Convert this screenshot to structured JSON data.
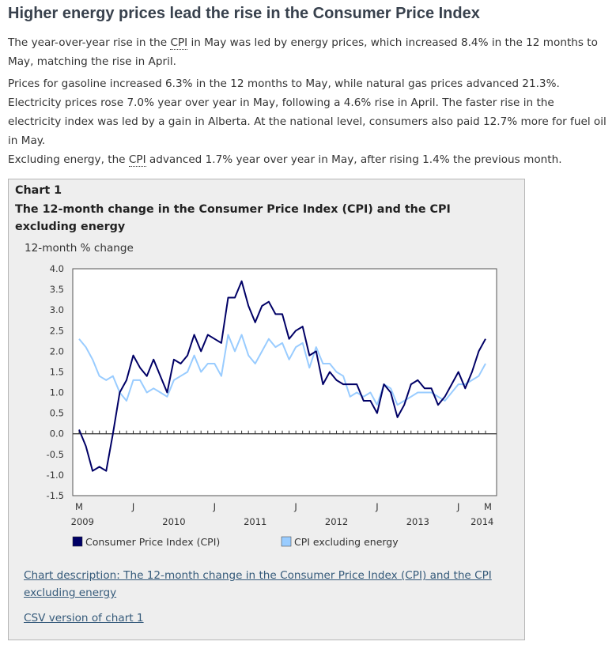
{
  "article": {
    "title": "Higher energy prices lead the rise in the Consumer Price Index",
    "p1_a": "The year-over-year rise in the ",
    "p1_abbr": "CPI",
    "p1_b": " in May was led by energy prices, which increased 8.4% in the 12 months to May, matching the rise in April.",
    "p2": "Prices for gasoline increased 6.3% in the 12 months to May, while natural gas prices advanced 21.3%. Electricity prices rose 7.0% year over year in May, following a 4.6% rise in April. The faster rise in the electricity index was led by a gain in Alberta. At the national level, consumers also paid 12.7% more for fuel oil in May.",
    "p3_a": "Excluding energy, the ",
    "p3_abbr": "CPI",
    "p3_b": " advanced 1.7% year over year in May, after rising 1.4% the previous month."
  },
  "chart": {
    "number": "Chart 1",
    "title": "The 12-month change in the Consumer Price Index (CPI) and the CPI excluding energy",
    "description_link": "Chart description: The 12-month change in the Consumer Price Index (CPI) and the CPI excluding energy",
    "csv_link": "CSV version of chart 1"
  },
  "chart_data": {
    "type": "line",
    "ylabel": "12-month % change",
    "ylim": [
      -1.5,
      4.0
    ],
    "yticks": [
      "4.0",
      "3.5",
      "3.0",
      "2.5",
      "2.0",
      "1.5",
      "1.0",
      "0.5",
      "0.0",
      "-0.5",
      "-1.0",
      "-1.5"
    ],
    "month_labels": [
      "M",
      "J",
      "J",
      "J",
      "J",
      "J",
      "M"
    ],
    "year_labels": [
      "2009",
      "2010",
      "2011",
      "2012",
      "2013",
      "2014"
    ],
    "x_start": "May 2009",
    "x_end": "May 2014",
    "series": [
      {
        "name": "Consumer Price Index (CPI)",
        "color": "#000066",
        "values": [
          0.1,
          -0.3,
          -0.9,
          -0.8,
          -0.9,
          0.0,
          1.0,
          1.3,
          1.9,
          1.6,
          1.4,
          1.8,
          1.4,
          1.0,
          1.8,
          1.7,
          1.9,
          2.4,
          2.0,
          2.4,
          2.3,
          2.2,
          3.3,
          3.3,
          3.7,
          3.1,
          2.7,
          3.1,
          3.2,
          2.9,
          2.9,
          2.3,
          2.5,
          2.6,
          1.9,
          2.0,
          1.2,
          1.5,
          1.3,
          1.2,
          1.2,
          1.2,
          0.8,
          0.8,
          0.5,
          1.2,
          1.0,
          0.4,
          0.7,
          1.2,
          1.3,
          1.1,
          1.1,
          0.7,
          0.9,
          1.2,
          1.5,
          1.1,
          1.5,
          2.0,
          2.3
        ]
      },
      {
        "name": "CPI excluding energy",
        "color": "#99ccff",
        "values": [
          2.3,
          2.1,
          1.8,
          1.4,
          1.3,
          1.4,
          1.0,
          0.8,
          1.3,
          1.3,
          1.0,
          1.1,
          1.0,
          0.9,
          1.3,
          1.4,
          1.5,
          1.9,
          1.5,
          1.7,
          1.7,
          1.4,
          2.4,
          2.0,
          2.4,
          1.9,
          1.7,
          2.0,
          2.3,
          2.1,
          2.2,
          1.8,
          2.1,
          2.2,
          1.6,
          2.1,
          1.7,
          1.7,
          1.5,
          1.4,
          0.9,
          1.0,
          0.9,
          1.0,
          0.7,
          1.2,
          1.1,
          0.7,
          0.8,
          0.9,
          1.0,
          1.0,
          1.0,
          0.9,
          0.8,
          1.0,
          1.2,
          1.2,
          1.3,
          1.4,
          1.7
        ]
      }
    ]
  }
}
